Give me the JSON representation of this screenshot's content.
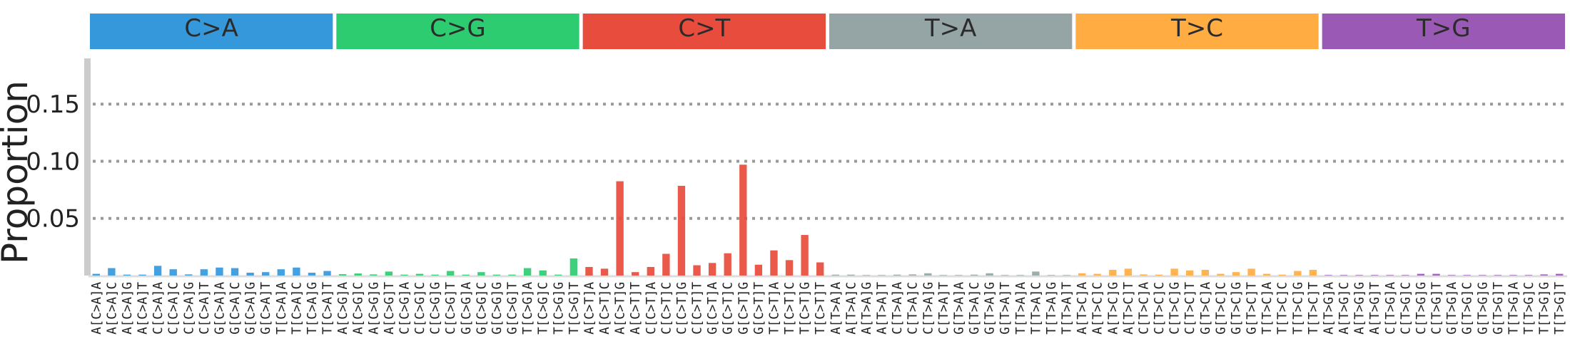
{
  "chart_data": {
    "type": "bar",
    "ylabel": "Proportion",
    "yticks": [
      "0.05",
      "0.10",
      "0.15"
    ],
    "ytick_values": [
      0.05,
      0.1,
      0.15
    ],
    "ylim": [
      0,
      0.19
    ],
    "grid": "horizontal dotted",
    "panels": [
      {
        "label": "C>A",
        "color": "#3498db"
      },
      {
        "label": "C>G",
        "color": "#2ecc71"
      },
      {
        "label": "C>T",
        "color": "#e74c3c"
      },
      {
        "label": "T>A",
        "color": "#95a5a6"
      },
      {
        "label": "T>C",
        "color": "#ffad42"
      },
      {
        "label": "T>G",
        "color": "#9b59b6"
      }
    ],
    "categories": [
      "A[C>A]A",
      "A[C>A]C",
      "A[C>A]G",
      "A[C>A]T",
      "C[C>A]A",
      "C[C>A]C",
      "C[C>A]G",
      "C[C>A]T",
      "G[C>A]A",
      "G[C>A]C",
      "G[C>A]G",
      "G[C>A]T",
      "T[C>A]A",
      "T[C>A]C",
      "T[C>A]G",
      "T[C>A]T",
      "A[C>G]A",
      "A[C>G]C",
      "A[C>G]G",
      "A[C>G]T",
      "C[C>G]A",
      "C[C>G]C",
      "C[C>G]G",
      "C[C>G]T",
      "G[C>G]A",
      "G[C>G]C",
      "G[C>G]G",
      "G[C>G]T",
      "T[C>G]A",
      "T[C>G]C",
      "T[C>G]G",
      "T[C>G]T",
      "A[C>T]A",
      "A[C>T]C",
      "A[C>T]G",
      "A[C>T]T",
      "C[C>T]A",
      "C[C>T]C",
      "C[C>T]G",
      "C[C>T]T",
      "G[C>T]A",
      "G[C>T]C",
      "G[C>T]G",
      "G[C>T]T",
      "T[C>T]A",
      "T[C>T]C",
      "T[C>T]G",
      "T[C>T]T",
      "A[T>A]A",
      "A[T>A]C",
      "A[T>A]G",
      "A[T>A]T",
      "C[T>A]A",
      "C[T>A]C",
      "C[T>A]G",
      "C[T>A]T",
      "G[T>A]A",
      "G[T>A]C",
      "G[T>A]G",
      "G[T>A]T",
      "T[T>A]A",
      "T[T>A]C",
      "T[T>A]G",
      "T[T>A]T",
      "A[T>C]A",
      "A[T>C]C",
      "A[T>C]G",
      "A[T>C]T",
      "C[T>C]A",
      "C[T>C]C",
      "C[T>C]G",
      "C[T>C]T",
      "G[T>C]A",
      "G[T>C]C",
      "G[T>C]G",
      "G[T>C]T",
      "T[T>C]A",
      "T[T>C]C",
      "T[T>C]G",
      "T[T>C]T",
      "A[T>G]A",
      "A[T>G]C",
      "A[T>G]G",
      "A[T>G]T",
      "C[T>G]A",
      "C[T>G]C",
      "C[T>G]G",
      "C[T>G]T",
      "G[T>G]A",
      "G[T>G]C",
      "G[T>G]G",
      "G[T>G]T",
      "T[T>G]A",
      "T[T>G]C",
      "T[T>G]G",
      "T[T>G]T"
    ],
    "values": [
      0.0015,
      0.0065,
      0.0008,
      0.0008,
      0.0085,
      0.0055,
      0.001,
      0.0055,
      0.007,
      0.0065,
      0.0025,
      0.003,
      0.0055,
      0.007,
      0.0025,
      0.004,
      0.0012,
      0.0018,
      0.001,
      0.0035,
      0.0008,
      0.0015,
      0.0008,
      0.004,
      0.0008,
      0.003,
      0.0008,
      0.0008,
      0.0065,
      0.0045,
      0.0008,
      0.015,
      0.0075,
      0.006,
      0.0825,
      0.003,
      0.0075,
      0.019,
      0.0785,
      0.009,
      0.011,
      0.0195,
      0.097,
      0.0095,
      0.022,
      0.0135,
      0.0355,
      0.0115,
      0.0008,
      0.0008,
      0.0005,
      0.0005,
      0.0008,
      0.001,
      0.002,
      0.0005,
      0.0005,
      0.0008,
      0.002,
      0.0005,
      0.0005,
      0.0035,
      0.0005,
      0.0005,
      0.002,
      0.0015,
      0.005,
      0.006,
      0.001,
      0.0008,
      0.006,
      0.0045,
      0.005,
      0.0015,
      0.003,
      0.006,
      0.0015,
      0.0008,
      0.004,
      0.005,
      0.0005,
      0.0005,
      0.0005,
      0.0005,
      0.0005,
      0.0005,
      0.0015,
      0.0015,
      0.0005,
      0.0005,
      0.0005,
      0.0005,
      0.0005,
      0.0005,
      0.001,
      0.0015
    ]
  }
}
